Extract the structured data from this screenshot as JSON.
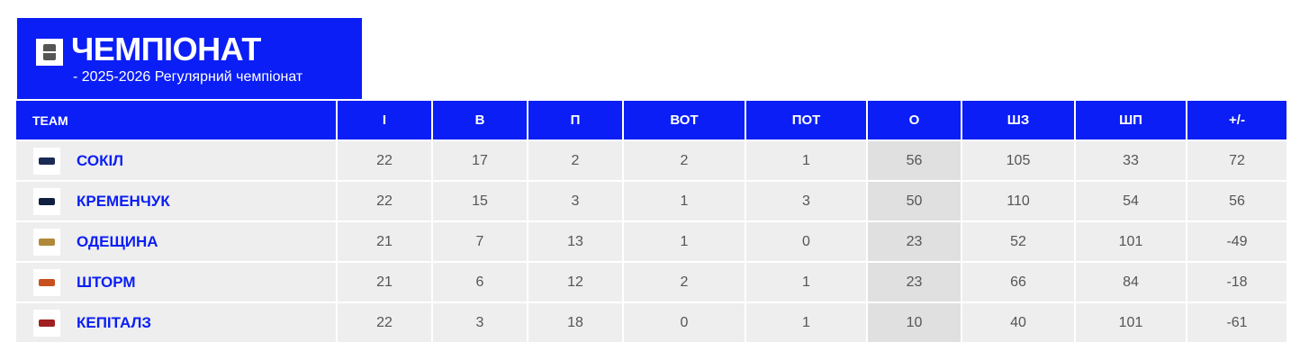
{
  "header": {
    "title": "ЧЕМПІОНАТ",
    "subtitle": "- 2025-2026 Регулярний чемпіонат",
    "icon": "trophy-icon"
  },
  "accent": "#0a1ef5",
  "columns": [
    "TEAM",
    "І",
    "В",
    "П",
    "ВОТ",
    "ПОТ",
    "О",
    "ШЗ",
    "ШП",
    "+/-"
  ],
  "rows": [
    {
      "team": "СОКІЛ",
      "logo_color": "#1b2a55",
      "values": [
        "22",
        "17",
        "2",
        "2",
        "1",
        "56",
        "105",
        "33",
        "72"
      ]
    },
    {
      "team": "КРЕМЕНЧУК",
      "logo_color": "#102040",
      "values": [
        "22",
        "15",
        "3",
        "1",
        "3",
        "50",
        "110",
        "54",
        "56"
      ]
    },
    {
      "team": "ОДЕЩИНА",
      "logo_color": "#b08a3a",
      "values": [
        "21",
        "7",
        "13",
        "1",
        "0",
        "23",
        "52",
        "101",
        "-49"
      ]
    },
    {
      "team": "ШТОРМ",
      "logo_color": "#c8501e",
      "values": [
        "21",
        "6",
        "12",
        "2",
        "1",
        "23",
        "66",
        "84",
        "-18"
      ]
    },
    {
      "team": "КЕПІТАЛЗ",
      "logo_color": "#a02020",
      "values": [
        "22",
        "3",
        "18",
        "0",
        "1",
        "10",
        "40",
        "101",
        "-61"
      ]
    }
  ]
}
